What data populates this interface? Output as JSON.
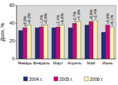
{
  "chart_data": {
    "type": "bar",
    "y_label": "Доля, %",
    "categories": [
      "Январь",
      "Февраль",
      "Март",
      "Апрель",
      "Май",
      "Июнь"
    ],
    "series": [
      {
        "name": "2004 г.",
        "color": "#1f2f7a",
        "values": [
          32,
          35,
          35,
          35,
          38,
          30
        ]
      },
      {
        "name": "2005 г.",
        "color": "#d6007b",
        "values": [
          35,
          36,
          36,
          40,
          42,
          38
        ],
        "change_labels": [
          "+8,9%",
          "+1,2%",
          "+2,4%",
          "+3,7%",
          "+9,6%",
          "+5,6%"
        ]
      },
      {
        "name": "2006 г.",
        "color": "#fff3a8",
        "values": [
          38,
          38,
          38,
          42,
          43,
          36
        ],
        "change_labels": [
          "+8,3%",
          "+5,9%",
          "+6,6%",
          "+4,3%",
          "+2,4%",
          "+6,1%"
        ]
      }
    ],
    "ylim": [
      0,
      60
    ],
    "yticks": [
      0,
      20,
      40,
      60
    ],
    "grid": false,
    "legend": "bottom"
  }
}
